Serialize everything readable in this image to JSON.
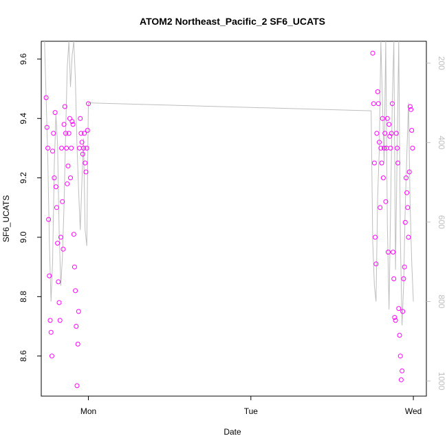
{
  "chart_data": {
    "type": "scatter",
    "title": "ATOM2 Northeast_Pacific_2 SF6_UCATS",
    "xlabel": "Date",
    "ylabel": "SF6_UCATS",
    "x_ticks": [
      "Mon",
      "Tue",
      "Wed"
    ],
    "x_tick_positions_days": [
      0,
      1,
      2
    ],
    "xlim_days": [
      -0.29,
      2.08
    ],
    "ylim": [
      8.465,
      9.66
    ],
    "y_ticks": [
      8.6,
      8.8,
      9.0,
      9.2,
      9.4,
      9.6
    ],
    "ylim_right": [
      1038,
      145
    ],
    "y_ticks_right": [
      200,
      400,
      600,
      800,
      1000
    ],
    "grid": false,
    "colors": {
      "points": "#ff00ff",
      "line": "#bebebe",
      "axis": "#000000",
      "right_axis": "#bebebe"
    },
    "series": [
      {
        "marker": "circle",
        "x_days": [
          -0.26,
          -0.255,
          -0.25,
          -0.245,
          -0.24,
          -0.235,
          -0.23,
          -0.225,
          -0.22,
          -0.215,
          -0.21,
          -0.205,
          -0.2,
          -0.195,
          -0.19,
          -0.185,
          -0.18,
          -0.175,
          -0.17,
          -0.165,
          -0.16,
          -0.155,
          -0.15,
          -0.145,
          -0.14,
          -0.135,
          -0.13,
          -0.125,
          -0.12,
          -0.115,
          -0.11,
          -0.105,
          -0.1,
          -0.095,
          -0.09,
          -0.085,
          -0.08,
          -0.075,
          -0.07,
          -0.065,
          -0.06,
          -0.055,
          -0.05,
          -0.045,
          -0.04,
          -0.035,
          -0.03,
          -0.025,
          -0.02,
          -0.015,
          -0.01,
          -0.005,
          0.0,
          1.75,
          1.755,
          1.76,
          1.765,
          1.77,
          1.775,
          1.78,
          1.785,
          1.79,
          1.795,
          1.8,
          1.805,
          1.81,
          1.815,
          1.82,
          1.825,
          1.83,
          1.835,
          1.84,
          1.845,
          1.85,
          1.855,
          1.86,
          1.865,
          1.87,
          1.875,
          1.88,
          1.885,
          1.89,
          1.895,
          1.9,
          1.905,
          1.91,
          1.915,
          1.92,
          1.925,
          1.93,
          1.935,
          1.94,
          1.945,
          1.95,
          1.955,
          1.96,
          1.965,
          1.97,
          1.975,
          1.98,
          1.985,
          1.99,
          1.995
        ],
        "values": [
          9.47,
          9.37,
          9.3,
          9.06,
          8.87,
          8.72,
          8.68,
          8.6,
          9.29,
          9.35,
          9.2,
          9.42,
          9.17,
          9.1,
          8.98,
          8.85,
          8.78,
          8.72,
          9.0,
          9.3,
          9.12,
          8.96,
          9.38,
          9.44,
          9.35,
          9.3,
          9.18,
          9.24,
          9.35,
          9.4,
          9.2,
          9.3,
          9.39,
          9.38,
          9.01,
          8.9,
          8.82,
          8.7,
          8.5,
          8.64,
          8.75,
          9.3,
          9.4,
          9.35,
          9.32,
          9.28,
          9.3,
          9.35,
          9.25,
          9.22,
          9.3,
          9.36,
          9.45,
          9.62,
          9.45,
          9.25,
          9.0,
          8.91,
          9.35,
          9.49,
          9.45,
          9.32,
          9.1,
          9.3,
          9.25,
          9.4,
          9.2,
          9.3,
          9.35,
          9.12,
          9.3,
          9.4,
          8.95,
          9.38,
          9.34,
          9.3,
          9.35,
          9.45,
          8.95,
          8.86,
          8.73,
          8.72,
          9.35,
          9.3,
          9.25,
          8.76,
          8.67,
          8.6,
          8.52,
          8.55,
          8.75,
          8.86,
          8.9,
          9.05,
          9.2,
          9.15,
          9.1,
          9.0,
          9.22,
          9.44,
          9.43,
          9.36,
          9.3
        ]
      },
      {
        "name": "",
        "type": "line",
        "y_axis": "right",
        "x_days": [
          -0.27,
          -0.26,
          -0.25,
          -0.24,
          -0.23,
          -0.22,
          -0.21,
          -0.2,
          -0.19,
          -0.18,
          -0.17,
          -0.16,
          -0.15,
          -0.14,
          -0.13,
          -0.12,
          -0.11,
          -0.1,
          -0.09,
          -0.08,
          -0.07,
          -0.06,
          -0.05,
          -0.04,
          -0.03,
          -0.02,
          -0.01,
          0.0,
          1.74,
          1.75,
          1.76,
          1.77,
          1.78,
          1.79,
          1.8,
          1.81,
          1.82,
          1.83,
          1.84,
          1.85,
          1.86,
          1.87,
          1.88,
          1.89,
          1.9,
          1.91,
          1.92,
          1.93,
          1.94,
          1.95,
          1.96,
          1.97,
          1.98,
          1.99,
          2.0
        ],
        "values": [
          145,
          290,
          440,
          650,
          800,
          700,
          460,
          330,
          400,
          620,
          760,
          690,
          560,
          380,
          210,
          145,
          260,
          180,
          145,
          240,
          410,
          520,
          620,
          500,
          390,
          620,
          660,
          300,
          320,
          650,
          760,
          800,
          540,
          420,
          145,
          300,
          450,
          145,
          610,
          820,
          560,
          300,
          145,
          720,
          420,
          145,
          640,
          860,
          760,
          560,
          430,
          300,
          560,
          700,
          800
        ]
      }
    ]
  }
}
